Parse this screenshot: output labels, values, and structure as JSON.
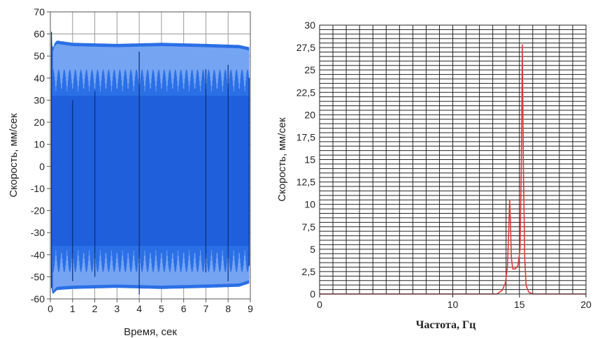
{
  "chart_data": [
    {
      "type": "line",
      "xlabel": "Время, сек",
      "ylabel": "Скорость, мм/сек",
      "xlim": [
        0,
        9
      ],
      "ylim": [
        -60,
        70
      ],
      "xticks": [
        0,
        1,
        2,
        3,
        4,
        5,
        6,
        7,
        8,
        9
      ],
      "yticks": [
        -60,
        -50,
        -40,
        -30,
        -20,
        -10,
        0,
        10,
        20,
        30,
        40,
        50,
        60,
        70
      ],
      "grid": true,
      "series": [
        {
          "color": "#2a6fe6",
          "envelope_upper": [
            [
              0.05,
              61
            ],
            [
              0.1,
              53
            ],
            [
              0.2,
              56
            ],
            [
              0.3,
              57
            ],
            [
              1.0,
              56
            ],
            [
              3.0,
              55.5
            ],
            [
              5.0,
              56
            ],
            [
              7.0,
              55.5
            ],
            [
              8.5,
              55
            ],
            [
              8.95,
              54
            ]
          ],
          "envelope_lower": [
            [
              0.05,
              -55
            ],
            [
              0.1,
              -58
            ],
            [
              0.3,
              -56
            ],
            [
              1.0,
              -55.5
            ],
            [
              3.0,
              -55
            ],
            [
              5.0,
              -55.5
            ],
            [
              7.0,
              -55
            ],
            [
              8.5,
              -54.5
            ],
            [
              8.95,
              -53
            ]
          ],
          "inner_upper": 32,
          "inner_lower": -36,
          "beat_period": 0.25
        }
      ]
    },
    {
      "type": "line",
      "xlabel": "Частота, Гц",
      "ylabel": "Скорость, мм/сек",
      "xlim": [
        0,
        20
      ],
      "ylim": [
        0,
        30
      ],
      "xticks": [
        0,
        10,
        15,
        20
      ],
      "yticks": [
        0,
        2.5,
        5,
        7.5,
        10,
        12.5,
        15,
        17.5,
        20,
        22.5,
        25,
        27.5,
        30
      ],
      "ytick_labels": [
        "0",
        "2,5",
        "5",
        "7,5",
        "10",
        "12,5",
        "15",
        "17,5",
        "20",
        "22,5",
        "25",
        "27,5",
        "30"
      ],
      "grid": true,
      "series": [
        {
          "color": "#e03a3a",
          "points": [
            [
              0,
              0
            ],
            [
              13.3,
              0
            ],
            [
              13.7,
              0.4
            ],
            [
              13.95,
              1.2
            ],
            [
              14.1,
              3
            ],
            [
              14.2,
              7
            ],
            [
              14.27,
              10.5
            ],
            [
              14.33,
              8
            ],
            [
              14.4,
              4
            ],
            [
              14.5,
              2.8
            ],
            [
              14.7,
              2.8
            ],
            [
              14.9,
              3.2
            ],
            [
              15.05,
              5
            ],
            [
              15.15,
              15
            ],
            [
              15.22,
              27.8
            ],
            [
              15.3,
              14
            ],
            [
              15.4,
              4
            ],
            [
              15.5,
              1
            ],
            [
              15.7,
              0.2
            ],
            [
              16.0,
              0
            ],
            [
              20,
              0
            ]
          ]
        }
      ]
    }
  ]
}
